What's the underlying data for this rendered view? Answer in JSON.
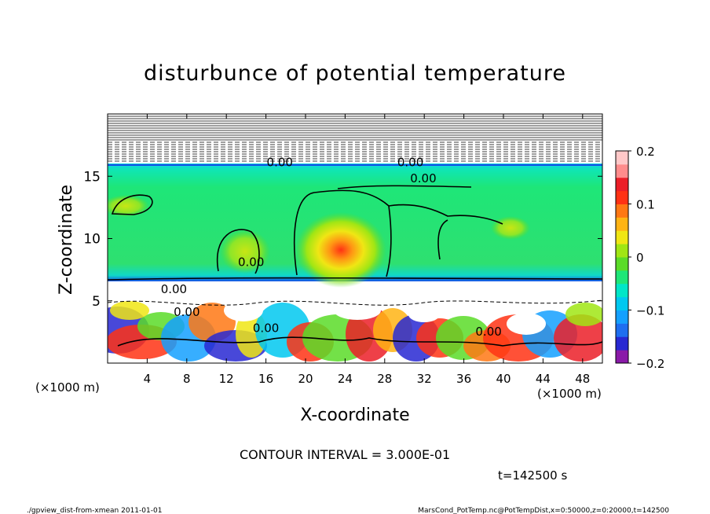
{
  "chart_data": {
    "type": "heatmap",
    "title": "disturbunce of potential temperature",
    "xlabel": "X-coordinate",
    "ylabel": "Z-coordinate",
    "x_unit_left": "(×1000 m)",
    "x_unit_right": "(×1000 m)",
    "xlim": [
      0,
      50
    ],
    "ylim": [
      0,
      20
    ],
    "x_ticks": [
      4,
      8,
      12,
      16,
      20,
      24,
      28,
      32,
      36,
      40,
      44,
      48
    ],
    "x_tick_labels": [
      "4",
      "8",
      "12",
      "16",
      "20",
      "24",
      "28",
      "32",
      "36",
      "40",
      "44",
      "48"
    ],
    "y_ticks": [
      5,
      10,
      15
    ],
    "y_tick_labels": [
      "5",
      "10",
      "15"
    ],
    "colorbar": {
      "range": [
        -0.2,
        0.2
      ],
      "tick_values": [
        0.2,
        0.1,
        0,
        -0.1,
        -0.2
      ],
      "tick_labels": [
        "0.2",
        "0.1",
        "0",
        "−0.1",
        "−0.2"
      ],
      "colors": [
        "#8a1aa8",
        "#2828d2",
        "#1e6ef0",
        "#14a0ff",
        "#00c8f0",
        "#00e6c8",
        "#1ee678",
        "#5adc28",
        "#a0e614",
        "#f0e614",
        "#ffb414",
        "#ff7814",
        "#ff3214",
        "#eb1e28",
        "#ff8c8c",
        "#ffc8c8"
      ]
    },
    "contour_labels": [
      {
        "text": "0.00",
        "x": 17.4,
        "y": 15.8
      },
      {
        "text": "0.00",
        "x": 30.6,
        "y": 15.8
      },
      {
        "text": "0.00",
        "x": 31.9,
        "y": 14.5
      },
      {
        "text": "0.00",
        "x": 14.5,
        "y": 7.8
      },
      {
        "text": "0.00",
        "x": 6.7,
        "y": 5.6
      },
      {
        "text": "0.00",
        "x": 8.0,
        "y": 3.8
      },
      {
        "text": "0.00",
        "x": 16.0,
        "y": 2.5
      },
      {
        "text": "0.00",
        "x": 38.5,
        "y": 2.2
      }
    ],
    "contour_interval_text": "CONTOUR INTERVAL = 3.000E-01",
    "time_text": "t=142500 s"
  },
  "footer": {
    "left": "./gpview_dist-from-xmean  2011-01-01",
    "right": "MarsCond_PotTemp.nc@PotTempDist,x=0:50000,z=0:20000,t=142500"
  }
}
